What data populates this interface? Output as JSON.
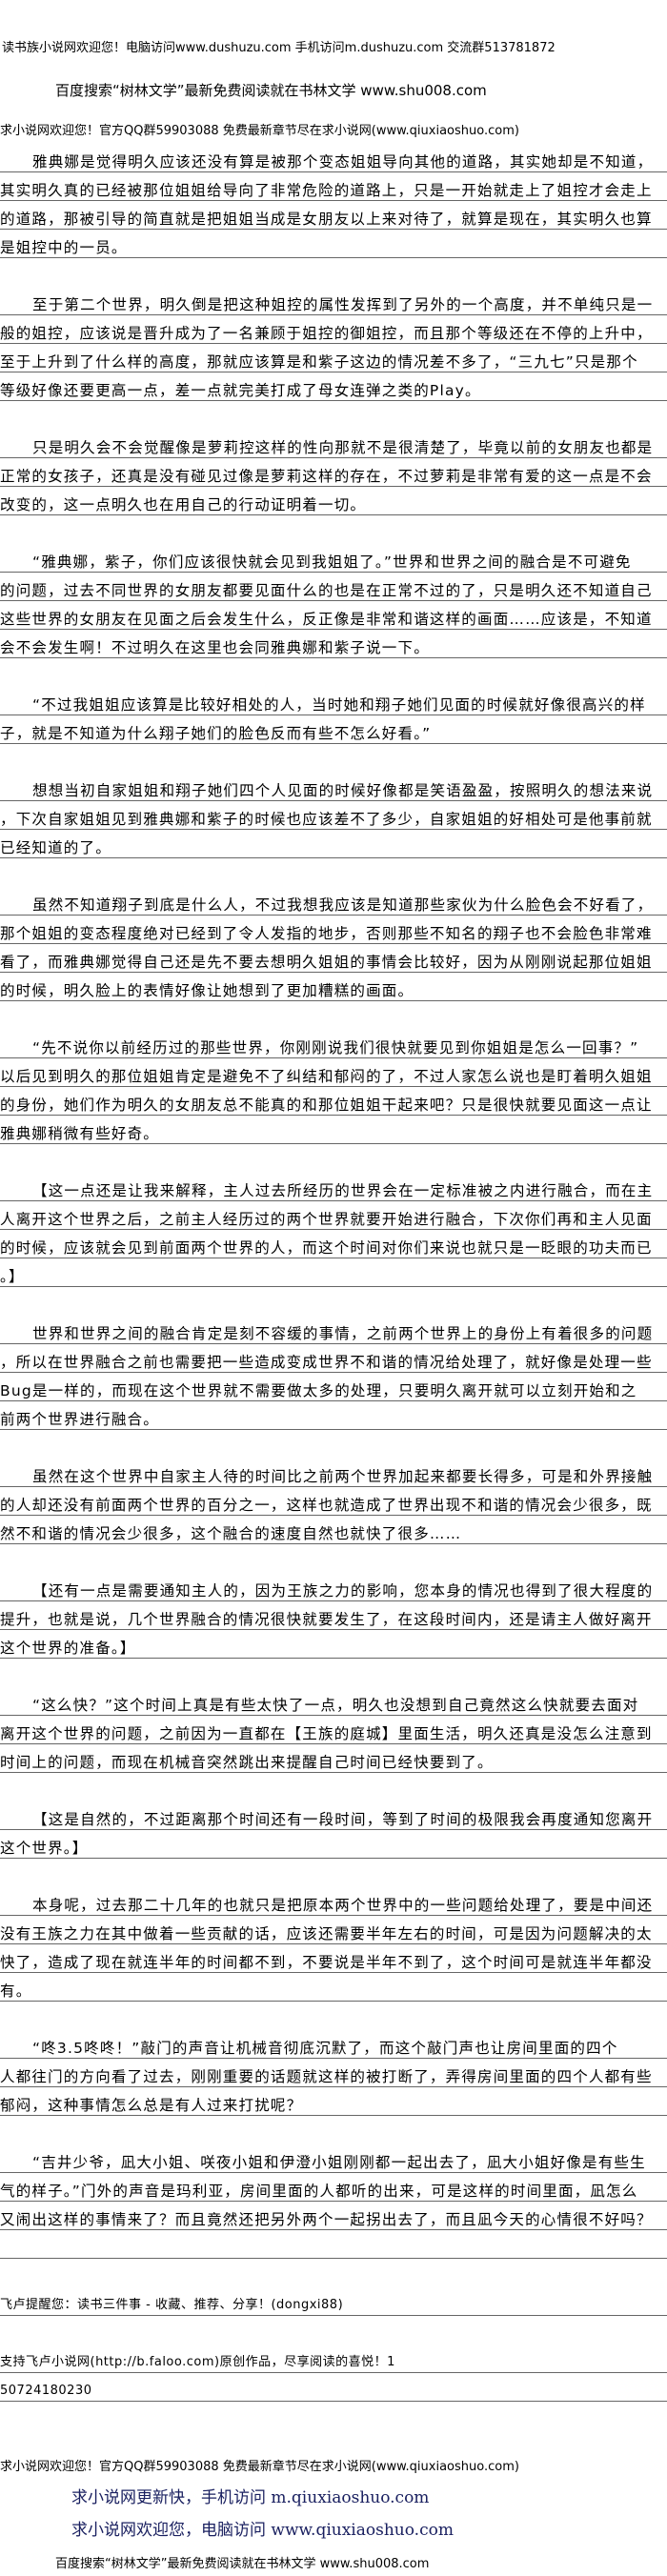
{
  "header": {
    "line1": "读书族小说网欢迎您！电脑访问www.dushuzu.com 手机访问m.dushuzu.com 交流群513781872",
    "line2": "百度搜索“树林文学”最新免费阅读就在书林文学 www.shu008.com",
    "line3": "求小说网欢迎您！官方QQ群59903088 免费最新章节尽在求小说网(www.qiuxiaoshuo.com)"
  },
  "paragraphs": [
    [
      "雅典娜是觉得明久应该还没有算是被那个变态姐姐导向其他的道路，其实她却是不知道，",
      "其实明久真的已经被那位姐姐给导向了非常危险的道路上，只是一开始就走上了姐控才会走上",
      "的道路，那被引导的简直就是把姐姐当成是女朋友以上来对待了，就算是现在，其实明久也算",
      "是姐控中的一员。"
    ],
    [
      "至于第二个世界，明久倒是把这种姐控的属性发挥到了另外的一个高度，并不单纯只是一",
      "般的姐控，应该说是晋升成为了一名兼顾于姐控的御姐控，而且那个等级还在不停的上升中，",
      "至于上升到了什么样的高度，那就应该算是和紫子这边的情况差不多了，“三九七”只是那个",
      "等级好像还要更高一点，差一点就完美打成了母女连弹之类的Play。"
    ],
    [
      "只是明久会不会觉醒像是萝莉控这样的性向那就不是很清楚了，毕竟以前的女朋友也都是",
      "正常的女孩子，还真是没有碰见过像是萝莉这样的存在，不过萝莉是非常有爱的这一点是不会",
      "改变的，这一点明久也在用自己的行动证明着一切。"
    ],
    [
      "“雅典娜，紫子，你们应该很快就会见到我姐姐了。”世界和世界之间的融合是不可避免",
      "的问题，过去不同世界的女朋友都要见面什么的也是在正常不过的了，只是明久还不知道自己",
      "这些世界的女朋友在见面之后会发生什么，反正像是非常和谐这样的画面……应该是，不知道",
      "会不会发生啊！不过明久在这里也会同雅典娜和紫子说一下。"
    ],
    [
      "“不过我姐姐应该算是比较好相处的人，当时她和翔子她们见面的时候就好像很高兴的样",
      "子，就是不知道为什么翔子她们的脸色反而有些不怎么好看。”"
    ],
    [
      "想想当初自家姐姐和翔子她们四个人见面的时候好像都是笑语盈盈，按照明久的想法来说",
      "，下次自家姐姐见到雅典娜和紫子的时候也应该差不了多少，自家姐姐的好相处可是他事前就",
      "已经知道的了。"
    ],
    [
      "虽然不知道翔子到底是什么人，不过我想我应该是知道那些家伙为什么脸色会不好看了，",
      "那个姐姐的变态程度绝对已经到了令人发指的地步，否则那些不知名的翔子也不会脸色非常难",
      "看了，而雅典娜觉得自己还是先不要去想明久姐姐的事情会比较好，因为从刚刚说起那位姐姐",
      "的时候，明久脸上的表情好像让她想到了更加糟糕的画面。"
    ],
    [
      "“先不说你以前经历过的那些世界，你刚刚说我们很快就要见到你姐姐是怎么一回事？”",
      "以后见到明久的那位姐姐肯定是避免不了纠结和郁闷的了，不过人家怎么说也是盯着明久姐姐",
      "的身份，她们作为明久的女朋友总不能真的和那位姐姐干起来吧？只是很快就要见面这一点让",
      "雅典娜稍微有些好奇。"
    ],
    [
      "【这一点还是让我来解释，主人过去所经历的世界会在一定标准被之内进行融合，而在主",
      "人离开这个世界之后，之前主人经历过的两个世界就要开始进行融合，下次你们再和主人见面",
      "的时候，应该就会见到前面两个世界的人，而这个时间对你们来说也就只是一眨眼的功夫而已",
      "。】"
    ],
    [
      "世界和世界之间的融合肯定是刻不容缓的事情，之前两个世界上的身份上有着很多的问题",
      "，所以在世界融合之前也需要把一些造成变成世界不和谐的情况给处理了，就好像是处理一些",
      "Bug是一样的，而现在这个世界就不需要做太多的处理，只要明久离开就可以立刻开始和之",
      "前两个世界进行融合。"
    ],
    [
      "虽然在这个世界中自家主人待的时间比之前两个世界加起来都要长得多，可是和外界接触",
      "的人却还没有前面两个世界的百分之一，这样也就造成了世界出现不和谐的情况会少很多，既",
      "然不和谐的情况会少很多，这个融合的速度自然也就快了很多……"
    ],
    [
      "【还有一点是需要通知主人的，因为王族之力的影响，您本身的情况也得到了很大程度的",
      "提升，也就是说，几个世界融合的情况很快就要发生了，在这段时间内，还是请主人做好离开",
      "这个世界的准备。】"
    ],
    [
      "“这么快？”这个时间上真是有些太快了一点，明久也没想到自己竟然这么快就要去面对",
      "离开这个世界的问题，之前因为一直都在【王族的庭城】里面生活，明久还真是没怎么注意到",
      "时间上的问题，而现在机械音突然跳出来提醒自己时间已经快要到了。"
    ],
    [
      "【这是自然的，不过距离那个时间还有一段时间，等到了时间的极限我会再度通知您离开",
      "这个世界。】"
    ],
    [
      "本身呢，过去那二十几年的也就只是把原本两个世界中的一些问题给处理了，要是中间还",
      "没有王族之力在其中做着一些贡献的话，应该还需要半年左右的时间，可是因为问题解决的太",
      "快了，造成了现在就连半年的时间都不到，不要说是半年不到了，这个时间可是就连半年都没",
      "有。"
    ],
    [
      "“咚3.5咚咚！”敲门的声音让机械音彻底沉默了，而这个敲门声也让房间里面的四个",
      "人都往门的方向看了过去，刚刚重要的话题就这样的被打断了，弄得房间里面的四个人都有些",
      "郁闷，这种事情怎么总是有人过来打扰呢？"
    ],
    [
      "“吉井少爷，凪大小姐、咲夜小姐和伊澄小姐刚刚都一起出去了，凪大小姐好像是有些生",
      "气的样子。”门外的声音是玛利亚，房间里面的人都听的出来，可是这样的时间里面，凪怎么",
      "又闹出这样的事情来了？而且竟然还把另外两个一起拐出去了，而且凪今天的心情很不好吗？"
    ]
  ],
  "notes": {
    "reminder": "飞卢提醒您：读书三件事 - 收藏、推荐、分享！(dongxi88)",
    "support": "支持飞卢小说网(http://b.faloo.com)原创作品，尽享阅读的喜悦！1",
    "number": "50724180230"
  },
  "footer": {
    "line1": "求小说网欢迎您！官方QQ群59903088 免费最新章节尽在求小说网(www.qiuxiaoshuo.com)",
    "line2": "求小说网更新快，手机访问 m.qiuxiaoshuo.com",
    "line3": "求小说网欢迎您，电脑访问 www.qiuxiaoshuo.com",
    "line4": "百度搜索“树林文学”最新免费阅读就在书林文学 www.shu008.com"
  },
  "colors": {
    "rule": "#666666",
    "text": "#000000",
    "nav_text": "#1a2060"
  }
}
